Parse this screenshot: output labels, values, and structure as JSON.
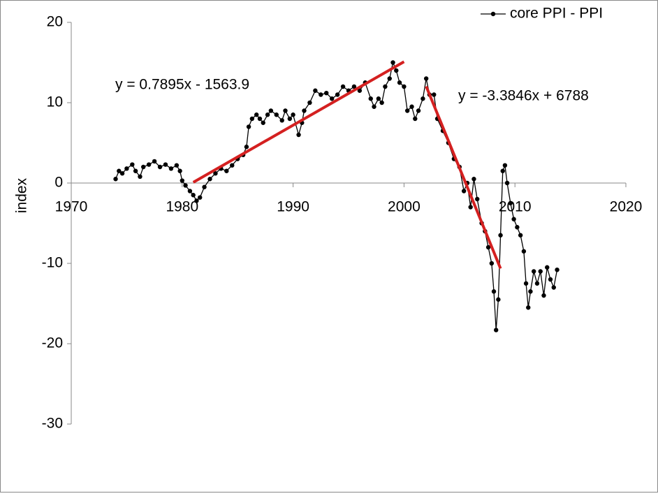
{
  "chart_data": {
    "type": "line",
    "ylabel": "index",
    "xlim": [
      1970,
      2020
    ],
    "xticks": [
      1970,
      1980,
      1990,
      2000,
      2010,
      2020
    ],
    "ylim": [
      -30,
      20
    ],
    "yticks": [
      -30,
      -20,
      -10,
      0,
      10,
      20
    ],
    "legend": "top-right",
    "series": [
      {
        "name": "core PPI - PPI",
        "color": "#000000",
        "x": [
          1974.0,
          1974.3,
          1974.6,
          1975.0,
          1975.5,
          1975.8,
          1976.2,
          1976.5,
          1977.0,
          1977.5,
          1978.0,
          1978.5,
          1979.0,
          1979.5,
          1979.8,
          1980.0,
          1980.3,
          1980.7,
          1981.0,
          1981.3,
          1981.6,
          1982.0,
          1982.5,
          1983.0,
          1983.5,
          1984.0,
          1984.5,
          1985.0,
          1985.5,
          1985.8,
          1986.0,
          1986.3,
          1986.7,
          1987.0,
          1987.3,
          1987.7,
          1988.0,
          1988.5,
          1989.0,
          1989.3,
          1989.7,
          1990.0,
          1990.5,
          1990.8,
          1991.0,
          1991.5,
          1992.0,
          1992.5,
          1993.0,
          1993.5,
          1994.0,
          1994.5,
          1995.0,
          1995.5,
          1996.0,
          1996.5,
          1997.0,
          1997.3,
          1997.7,
          1998.0,
          1998.3,
          1998.7,
          1999.0,
          1999.3,
          1999.6,
          2000.0,
          2000.3,
          2000.7,
          2001.0,
          2001.3,
          2001.7,
          2002.0,
          2002.3,
          2002.7,
          2003.0,
          2003.5,
          2004.0,
          2004.5,
          2005.0,
          2005.4,
          2005.7,
          2006.0,
          2006.3,
          2006.6,
          2007.0,
          2007.3,
          2007.6,
          2007.9,
          2008.1,
          2008.3,
          2008.5,
          2008.7,
          2008.9,
          2009.1,
          2009.3,
          2009.6,
          2009.9,
          2010.2,
          2010.5,
          2010.8,
          2011.0,
          2011.2,
          2011.4,
          2011.7,
          2012.0,
          2012.3,
          2012.6,
          2012.9,
          2013.2,
          2013.5,
          2013.8
        ],
        "values": [
          0.5,
          1.5,
          1.2,
          1.8,
          2.3,
          1.5,
          0.8,
          2.0,
          2.3,
          2.7,
          2.0,
          2.3,
          1.8,
          2.2,
          1.5,
          0.3,
          -0.3,
          -1.0,
          -1.5,
          -2.2,
          -1.8,
          -0.5,
          0.5,
          1.2,
          1.8,
          1.5,
          2.2,
          3.0,
          3.5,
          4.5,
          7.0,
          8.0,
          8.5,
          8.0,
          7.5,
          8.5,
          9.0,
          8.5,
          7.8,
          9.0,
          8.0,
          8.5,
          6.0,
          7.5,
          9.0,
          10.0,
          11.5,
          11.0,
          11.2,
          10.5,
          11.0,
          12.0,
          11.5,
          12.0,
          11.5,
          12.5,
          10.5,
          9.5,
          10.5,
          10.0,
          12.0,
          13.0,
          15.0,
          14.0,
          12.5,
          12.0,
          9.0,
          9.5,
          8.0,
          9.0,
          10.5,
          13.0,
          11.0,
          11.0,
          8.0,
          6.5,
          5.0,
          3.0,
          2.0,
          -1.0,
          0.0,
          -3.0,
          0.5,
          -2.0,
          -5.0,
          -6.0,
          -8.0,
          -10.0,
          -13.5,
          -18.3,
          -14.5,
          -6.5,
          1.5,
          2.2,
          0.0,
          -2.5,
          -4.5,
          -5.5,
          -6.5,
          -8.5,
          -12.5,
          -15.5,
          -13.5,
          -11.0,
          -12.5,
          -11.0,
          -14.0,
          -10.5,
          -12.0,
          -13.0,
          -10.8
        ]
      }
    ],
    "trendlines": [
      {
        "label": "y = 0.7895x - 1563.9",
        "color": "#d42020",
        "x": [
          1981,
          2000
        ],
        "values": [
          0.09,
          15.1
        ]
      },
      {
        "label": "y = -3.3846x + 6788",
        "color": "#d42020",
        "x": [
          2002,
          2008.7
        ],
        "values": [
          12.03,
          -10.64
        ]
      }
    ]
  }
}
